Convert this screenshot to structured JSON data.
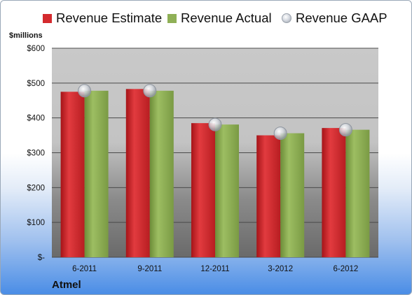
{
  "chart_data": {
    "type": "bar",
    "ylabel": "$millions",
    "categories": [
      "6-2011",
      "9-2011",
      "12-2011",
      "3-2012",
      "6-2012"
    ],
    "series": [
      {
        "name": "Revenue Estimate",
        "type": "bar",
        "color": "#d42a2e",
        "values": [
          475,
          483,
          385,
          350,
          371
        ]
      },
      {
        "name": "Revenue Actual",
        "type": "bar",
        "color": "#8fb056",
        "values": [
          478,
          478,
          381,
          356,
          366
        ]
      },
      {
        "name": "Revenue GAAP",
        "type": "marker",
        "color": "#c8ccd2",
        "values": [
          478,
          478,
          381,
          356,
          366
        ]
      }
    ],
    "ylim": [
      0,
      600
    ],
    "yticks": [
      0,
      100,
      200,
      300,
      400,
      500,
      600
    ],
    "yticklabels": [
      "$-",
      "$100",
      "$200",
      "$300",
      "$400",
      "$500",
      "$600"
    ],
    "grid": true,
    "legend": "top"
  },
  "footer": {
    "company": "Atmel"
  }
}
